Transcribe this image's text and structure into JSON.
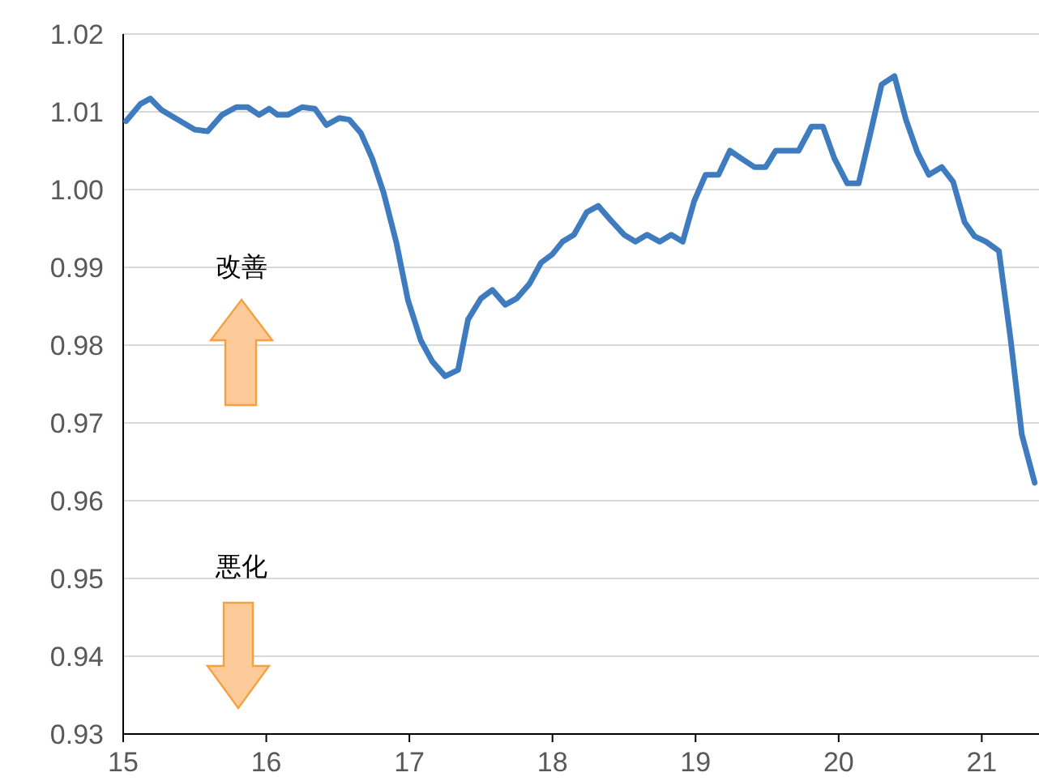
{
  "chart_data": {
    "type": "line",
    "x": [
      15.02,
      15.12,
      15.19,
      15.27,
      15.38,
      15.5,
      15.59,
      15.69,
      15.79,
      15.87,
      15.95,
      16.02,
      16.08,
      16.15,
      16.25,
      16.34,
      16.42,
      16.51,
      16.58,
      16.66,
      16.74,
      16.82,
      16.91,
      16.99,
      17.08,
      17.16,
      17.25,
      17.34,
      17.41,
      17.5,
      17.58,
      17.67,
      17.75,
      17.84,
      17.92,
      18.0,
      18.07,
      18.15,
      18.24,
      18.32,
      18.41,
      18.5,
      18.58,
      18.66,
      18.75,
      18.83,
      18.91,
      18.99,
      19.07,
      19.16,
      19.24,
      19.32,
      19.41,
      19.49,
      19.56,
      19.64,
      19.72,
      19.81,
      19.89,
      19.97,
      20.06,
      20.14,
      20.22,
      20.3,
      20.39,
      20.47,
      20.55,
      20.63,
      20.72,
      20.8,
      20.88,
      20.95,
      21.03,
      21.12,
      21.2,
      21.28,
      21.37
    ],
    "series": [
      {
        "color": "#3e7bbf",
        "values": [
          1.0088,
          1.011,
          1.0117,
          1.0102,
          1.009,
          1.0077,
          1.0075,
          1.0096,
          1.0106,
          1.0106,
          1.0096,
          1.0104,
          1.0096,
          1.0096,
          1.0106,
          1.0104,
          1.0083,
          1.0092,
          1.009,
          1.0073,
          1.004,
          0.9996,
          0.9931,
          0.9858,
          0.9806,
          0.9779,
          0.976,
          0.9768,
          0.9833,
          0.986,
          0.9871,
          0.9852,
          0.986,
          0.9879,
          0.9906,
          0.9917,
          0.9933,
          0.9942,
          0.9971,
          0.9979,
          0.996,
          0.9942,
          0.9933,
          0.9942,
          0.9933,
          0.9942,
          0.9933,
          0.9985,
          1.0019,
          1.0019,
          1.005,
          1.004,
          1.0029,
          1.0029,
          1.005,
          1.005,
          1.005,
          1.0081,
          1.0081,
          1.004,
          1.0008,
          1.0008,
          1.0071,
          1.0135,
          1.0146,
          1.009,
          1.0048,
          1.0019,
          1.0029,
          1.001,
          0.9958,
          0.994,
          0.9933,
          0.9921,
          0.981,
          0.9685,
          0.9623
        ]
      }
    ],
    "xlim": [
      15,
      21.4
    ],
    "xticks": [
      15,
      16,
      17,
      18,
      19,
      20,
      21
    ],
    "ylim": [
      0.93,
      1.02
    ],
    "yticks": [
      {
        "value": 0.93,
        "label": "0.93"
      },
      {
        "value": 0.94,
        "label": "0.94"
      },
      {
        "value": 0.95,
        "label": "0.95"
      },
      {
        "value": 0.96,
        "label": "0.96"
      },
      {
        "value": 0.97,
        "label": "0.97"
      },
      {
        "value": 0.98,
        "label": "0.98"
      },
      {
        "value": 0.99,
        "label": "0.99"
      },
      {
        "value": 1.0,
        "label": "1.00"
      },
      {
        "value": 1.01,
        "label": "1.01"
      },
      {
        "value": 1.02,
        "label": "1.02"
      }
    ],
    "grid": "y",
    "marker": "none",
    "line_style": "solid",
    "annotations": [
      "改善",
      "悪化"
    ]
  }
}
